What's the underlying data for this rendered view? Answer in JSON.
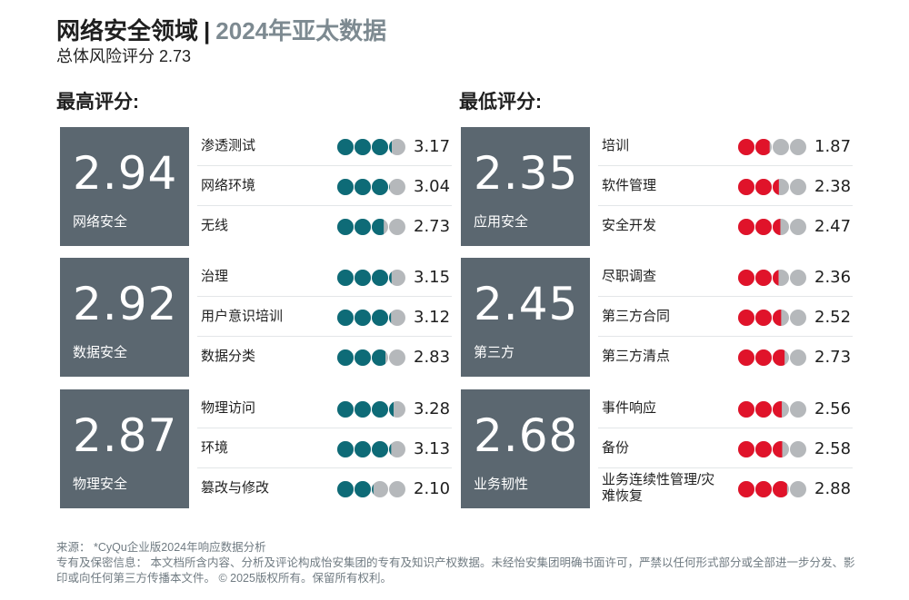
{
  "header": {
    "title": "网络安全领域",
    "separator": "|",
    "year": "2024年亚太数据",
    "subtitle": "总体风险评分 2.73"
  },
  "columns": {
    "left_heading": "最高评分:",
    "right_heading": "最低评分:"
  },
  "colors": {
    "box": "#5b6770",
    "teal": "#0e6b77",
    "red": "#e0132a",
    "gray": "#b5b8bb"
  },
  "chart_data": {
    "type": "table",
    "title": "网络安全领域 | 2024年亚太数据",
    "overall_score": 2.73,
    "scale_max": 4,
    "highest": [
      {
        "category": "网络安全",
        "score": "2.94",
        "items": [
          {
            "label": "渗透测试",
            "value": 3.17
          },
          {
            "label": "网络环境",
            "value": 3.04
          },
          {
            "label": "无线",
            "value": 2.73
          }
        ]
      },
      {
        "category": "数据安全",
        "score": "2.92",
        "items": [
          {
            "label": "治理",
            "value": 3.15
          },
          {
            "label": "用户意识培训",
            "value": 3.12
          },
          {
            "label": "数据分类",
            "value": 2.83
          }
        ]
      },
      {
        "category": "物理安全",
        "score": "2.87",
        "items": [
          {
            "label": "物理访问",
            "value": 3.28
          },
          {
            "label": "环境",
            "value": 3.13
          },
          {
            "label": "篡改与修改",
            "value": 2.1
          }
        ]
      }
    ],
    "lowest": [
      {
        "category": "应用安全",
        "score": "2.35",
        "items": [
          {
            "label": "培训",
            "value": 1.87
          },
          {
            "label": "软件管理",
            "value": 2.38
          },
          {
            "label": "安全开发",
            "value": 2.47
          }
        ]
      },
      {
        "category": "第三方",
        "score": "2.45",
        "items": [
          {
            "label": "尽职调查",
            "value": 2.36
          },
          {
            "label": "第三方合同",
            "value": 2.52
          },
          {
            "label": "第三方清点",
            "value": 2.73
          }
        ]
      },
      {
        "category": "业务韧性",
        "score": "2.68",
        "items": [
          {
            "label": "事件响应",
            "value": 2.56
          },
          {
            "label": "备份",
            "value": 2.58
          },
          {
            "label": "业务连续性管理/灾难恢复",
            "value": 2.88
          }
        ]
      }
    ]
  },
  "footer": {
    "source": "来源：  *CyQu企业版2024年响应数据分析",
    "notice": "专有及保密信息：  本文档所含内容、分析及评论构成怡安集团的专有及知识产权数据。未经怡安集团明确书面许可，严禁以任何形式部分或全部进一步分发、影印或向任何第三方传播本文件。 © 2025版权所有。保留所有权利。"
  }
}
